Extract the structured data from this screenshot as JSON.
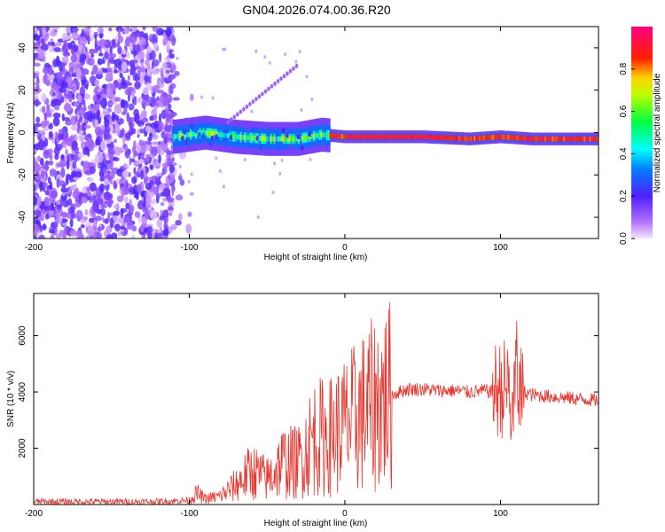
{
  "title": "GN04.2026.074.00.36.R20",
  "chart_data": [
    {
      "type": "heatmap",
      "xlabel": "Height of straight line (km)",
      "ylabel": "Frequency (Hz)",
      "xlim": [
        -200,
        163
      ],
      "ylim": [
        -50,
        50
      ],
      "xticks": [
        -200,
        -100,
        0,
        100
      ],
      "xtick_labels": [
        "-200",
        "-100",
        "0",
        "100"
      ],
      "yticks": [
        -40,
        -20,
        0,
        20,
        40
      ],
      "ytick_labels": [
        "-40",
        "-20",
        "0",
        "20",
        "40"
      ],
      "colorbar": {
        "label": "Normalized spectral amplitude",
        "range": [
          0,
          1
        ],
        "ticks": [
          0,
          0.2,
          0.4,
          0.6,
          0.8
        ],
        "tick_labels": [
          "0.0",
          "0.2",
          "0.4",
          "0.6",
          "0.8"
        ]
      },
      "features": [
        {
          "name": "noise region",
          "x_range": [
            -200,
            -110
          ],
          "freq_range": [
            -50,
            50
          ],
          "amplitude": 0.2
        },
        {
          "name": "signal band",
          "x_range": [
            -110,
            163
          ],
          "center_freq": [
            [
              -110,
              -2
            ],
            [
              -90,
              0
            ],
            [
              -70,
              -2
            ],
            [
              -50,
              -3
            ],
            [
              -30,
              -3
            ],
            [
              -15,
              -1
            ],
            [
              0,
              -2
            ],
            [
              50,
              -2
            ],
            [
              80,
              -3
            ],
            [
              100,
              -2
            ],
            [
              120,
              -3
            ],
            [
              163,
              -3
            ]
          ],
          "peak_amplitude": 1.0
        }
      ]
    },
    {
      "type": "line",
      "xlabel": "Height of straight line (km)",
      "ylabel": "SNR (10 * v/v)",
      "xlim": [
        -200,
        163
      ],
      "ylim": [
        0,
        7500
      ],
      "xticks": [
        -200,
        -100,
        0,
        100
      ],
      "xtick_labels": [
        "-200",
        "-100",
        "0",
        "100"
      ],
      "yticks": [
        2000,
        4000,
        6000
      ],
      "ytick_labels": [
        "2000",
        "4000",
        "6000"
      ],
      "series": [
        {
          "name": "SNR",
          "color": "#e8372f",
          "x": [
            -200,
            -150,
            -120,
            -100,
            -95,
            -90,
            -85,
            -80,
            -70,
            -60,
            -50,
            -40,
            -30,
            -20,
            -10,
            0,
            10,
            20,
            30,
            40,
            50,
            60,
            70,
            80,
            90,
            95,
            100,
            105,
            108,
            110,
            112,
            115,
            120,
            130,
            140,
            150,
            163
          ],
          "y": [
            100,
            100,
            100,
            150,
            400,
            200,
            250,
            300,
            700,
            1200,
            900,
            1500,
            1500,
            2400,
            2400,
            2800,
            3200,
            3600,
            3900,
            4100,
            4100,
            4050,
            4050,
            4000,
            4050,
            4000,
            4100,
            4200,
            3000,
            5000,
            3900,
            4000,
            3900,
            3850,
            3800,
            3750,
            3700
          ]
        }
      ]
    }
  ]
}
